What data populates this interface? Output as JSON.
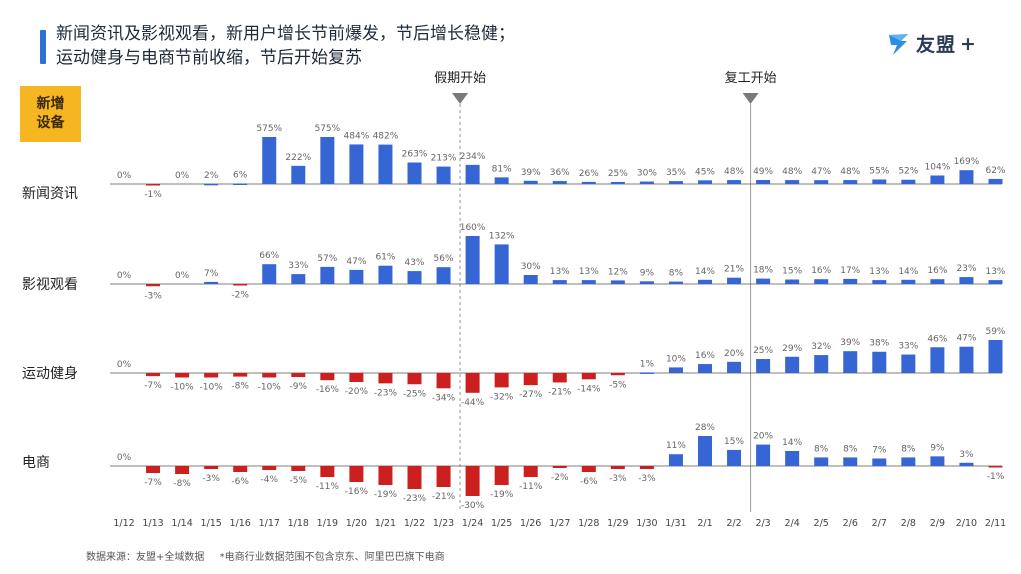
{
  "title": {
    "line1": "新闻资讯及影视观看，新用户增长节前爆发，节后增长稳健；",
    "line2": "运动健身与电商节前收缩，节后开始复苏"
  },
  "logo": {
    "text": "友盟",
    "plus": "+"
  },
  "badge": {
    "line1": "新增",
    "line2": "设备"
  },
  "footer": {
    "source": "数据来源：友盟+全域数据",
    "note": "*电商行业数据范围不包含京东、阿里巴巴旗下电商"
  },
  "colors": {
    "blue": "#3566d4",
    "red": "#cc1f1f",
    "accent": "#2e6fd8",
    "badge": "#f5b622"
  },
  "chart_data": {
    "type": "bar",
    "categories": [
      "1/12",
      "1/13",
      "1/14",
      "1/15",
      "1/16",
      "1/17",
      "1/18",
      "1/19",
      "1/20",
      "1/21",
      "1/22",
      "1/23",
      "1/24",
      "1/25",
      "1/26",
      "1/27",
      "1/28",
      "1/29",
      "1/30",
      "1/31",
      "2/1",
      "2/2",
      "2/3",
      "2/4",
      "2/5",
      "2/6",
      "2/7",
      "2/8",
      "2/9",
      "2/10",
      "2/11"
    ],
    "events": [
      {
        "label": "假期开始",
        "category": "1/24"
      },
      {
        "label": "复工开始",
        "category": "2/3"
      }
    ],
    "series": [
      {
        "name": "新闻资讯",
        "values": [
          0,
          -1,
          0,
          2,
          6,
          575,
          222,
          575,
          484,
          482,
          263,
          213,
          234,
          81,
          39,
          36,
          26,
          25,
          30,
          35,
          45,
          48,
          49,
          48,
          47,
          48,
          55,
          52,
          104,
          169,
          62
        ]
      },
      {
        "name": "影视观看",
        "values": [
          0,
          -3,
          0,
          7,
          -2,
          66,
          33,
          57,
          47,
          61,
          43,
          56,
          160,
          132,
          30,
          13,
          13,
          12,
          9,
          8,
          14,
          21,
          18,
          15,
          16,
          17,
          13,
          14,
          16,
          23,
          13
        ]
      },
      {
        "name": "运动健身",
        "values": [
          0,
          -7,
          -10,
          -10,
          -8,
          -10,
          -9,
          -16,
          -20,
          -23,
          -25,
          -34,
          -44,
          -32,
          -27,
          -21,
          -14,
          -5,
          1,
          10,
          16,
          20,
          25,
          29,
          32,
          39,
          38,
          33,
          46,
          47,
          59
        ]
      },
      {
        "name": "电商",
        "values": [
          0,
          -7,
          -8,
          -3,
          -6,
          -4,
          -5,
          -11,
          -16,
          -19,
          -23,
          -21,
          -30,
          -19,
          -11,
          -2,
          -6,
          -3,
          -3,
          11,
          28,
          15,
          20,
          14,
          8,
          8,
          7,
          8,
          9,
          3,
          -1
        ]
      }
    ],
    "unit": "%"
  }
}
